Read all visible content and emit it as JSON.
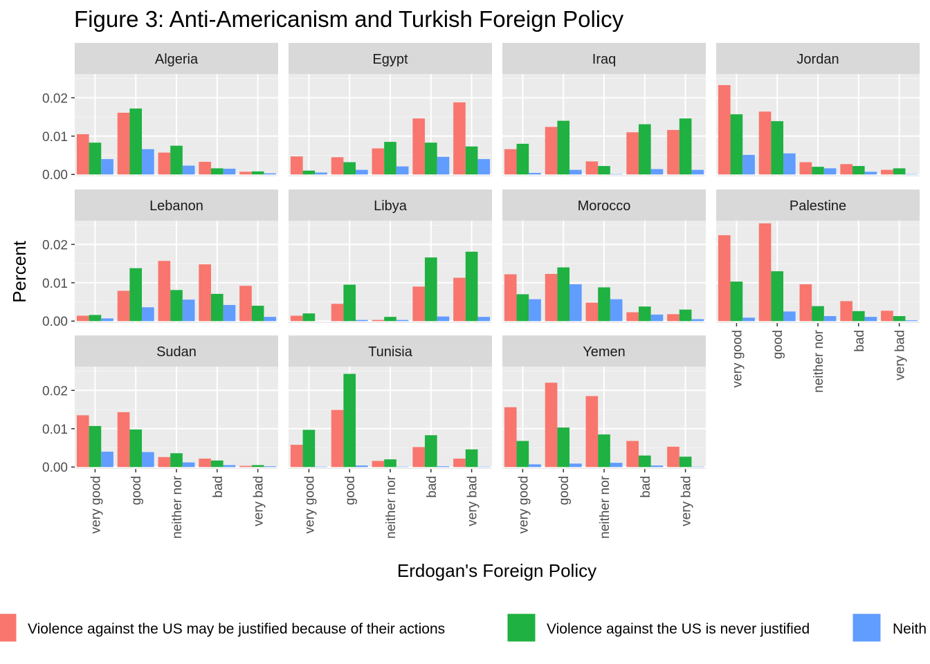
{
  "chart_data": {
    "type": "bar",
    "title": "Figure 3: Anti-Americanism and Turkish Foreign Policy",
    "xlabel": "Erdogan's Foreign Policy",
    "ylabel": "Percent",
    "ylim": [
      -0.0005,
      0.0262
    ],
    "y_ticks": [
      0.0,
      0.01,
      0.02
    ],
    "y_tick_labels": [
      "0.00",
      "0.01",
      "0.02"
    ],
    "categories": [
      "very good",
      "good",
      "neither nor",
      "bad",
      "very bad"
    ],
    "series_colors": [
      "#F8766D",
      "#1FB141",
      "#619CFF"
    ],
    "legend": {
      "position": "bottom",
      "entries": [
        "Violence against the US may be justified because of their actions",
        "Violence against the US is never justified",
        "Neith"
      ]
    },
    "grid": true,
    "facets": [
      {
        "name": "Algeria",
        "values": [
          [
            0.0105,
            0.0083,
            0.004
          ],
          [
            0.0161,
            0.0172,
            0.0066
          ],
          [
            0.0057,
            0.0075,
            0.0023
          ],
          [
            0.0033,
            0.0016,
            0.0015
          ],
          [
            0.0007,
            0.0008,
            0.0003
          ]
        ]
      },
      {
        "name": "Egypt",
        "values": [
          [
            0.0047,
            0.001,
            0.0005
          ],
          [
            0.0045,
            0.0032,
            0.0012
          ],
          [
            0.0068,
            0.0085,
            0.0021
          ],
          [
            0.0146,
            0.0083,
            0.0046
          ],
          [
            0.0188,
            0.0073,
            0.004
          ]
        ]
      },
      {
        "name": "Iraq",
        "values": [
          [
            0.0066,
            0.008,
            0.0004
          ],
          [
            0.0124,
            0.014,
            0.0012
          ],
          [
            0.0034,
            0.0022,
            0.0001
          ],
          [
            0.011,
            0.0131,
            0.0014
          ],
          [
            0.0116,
            0.0146,
            0.0012
          ]
        ]
      },
      {
        "name": "Jordan",
        "values": [
          [
            0.0233,
            0.0157,
            0.0051
          ],
          [
            0.0164,
            0.0139,
            0.0055
          ],
          [
            0.0032,
            0.002,
            0.0016
          ],
          [
            0.0027,
            0.0022,
            0.0007
          ],
          [
            0.0012,
            0.0016,
            0.0001
          ]
        ]
      },
      {
        "name": "Lebanon",
        "values": [
          [
            0.0014,
            0.0016,
            0.0007
          ],
          [
            0.0079,
            0.0138,
            0.0036
          ],
          [
            0.0157,
            0.0081,
            0.0056
          ],
          [
            0.0148,
            0.0071,
            0.0042
          ],
          [
            0.0092,
            0.004,
            0.0011
          ]
        ]
      },
      {
        "name": "Libya",
        "values": [
          [
            0.0014,
            0.002,
            0.0
          ],
          [
            0.0045,
            0.0095,
            0.0003
          ],
          [
            0.0003,
            0.0011,
            0.0003
          ],
          [
            0.009,
            0.0166,
            0.0012
          ],
          [
            0.0113,
            0.0181,
            0.0011
          ]
        ]
      },
      {
        "name": "Morocco",
        "values": [
          [
            0.0122,
            0.007,
            0.0057
          ],
          [
            0.0123,
            0.014,
            0.0096
          ],
          [
            0.0048,
            0.0088,
            0.0057
          ],
          [
            0.0023,
            0.0038,
            0.0017
          ],
          [
            0.0018,
            0.003,
            0.0005
          ]
        ]
      },
      {
        "name": "Palestine",
        "values": [
          [
            0.0224,
            0.0103,
            0.0009
          ],
          [
            0.0255,
            0.013,
            0.0025
          ],
          [
            0.0096,
            0.0039,
            0.0013
          ],
          [
            0.0052,
            0.0026,
            0.0011
          ],
          [
            0.0027,
            0.0013,
            0.0002
          ]
        ]
      },
      {
        "name": "Sudan",
        "values": [
          [
            0.0135,
            0.0107,
            0.004
          ],
          [
            0.0143,
            0.0098,
            0.0039
          ],
          [
            0.0026,
            0.0036,
            0.0012
          ],
          [
            0.0022,
            0.0017,
            0.0005
          ],
          [
            0.0003,
            0.0005,
            0.0002
          ]
        ]
      },
      {
        "name": "Tunisia",
        "values": [
          [
            0.0058,
            0.0097,
            0.0001
          ],
          [
            0.0149,
            0.0243,
            0.0004
          ],
          [
            0.0016,
            0.002,
            0.0001
          ],
          [
            0.0052,
            0.0083,
            0.0002
          ],
          [
            0.0022,
            0.0046,
            0.0001
          ]
        ]
      },
      {
        "name": "Yemen",
        "values": [
          [
            0.0156,
            0.0068,
            0.0007
          ],
          [
            0.022,
            0.0103,
            0.0009
          ],
          [
            0.0185,
            0.0085,
            0.0011
          ],
          [
            0.0068,
            0.003,
            0.0004
          ],
          [
            0.0053,
            0.0027,
            0.0001
          ]
        ]
      }
    ]
  }
}
